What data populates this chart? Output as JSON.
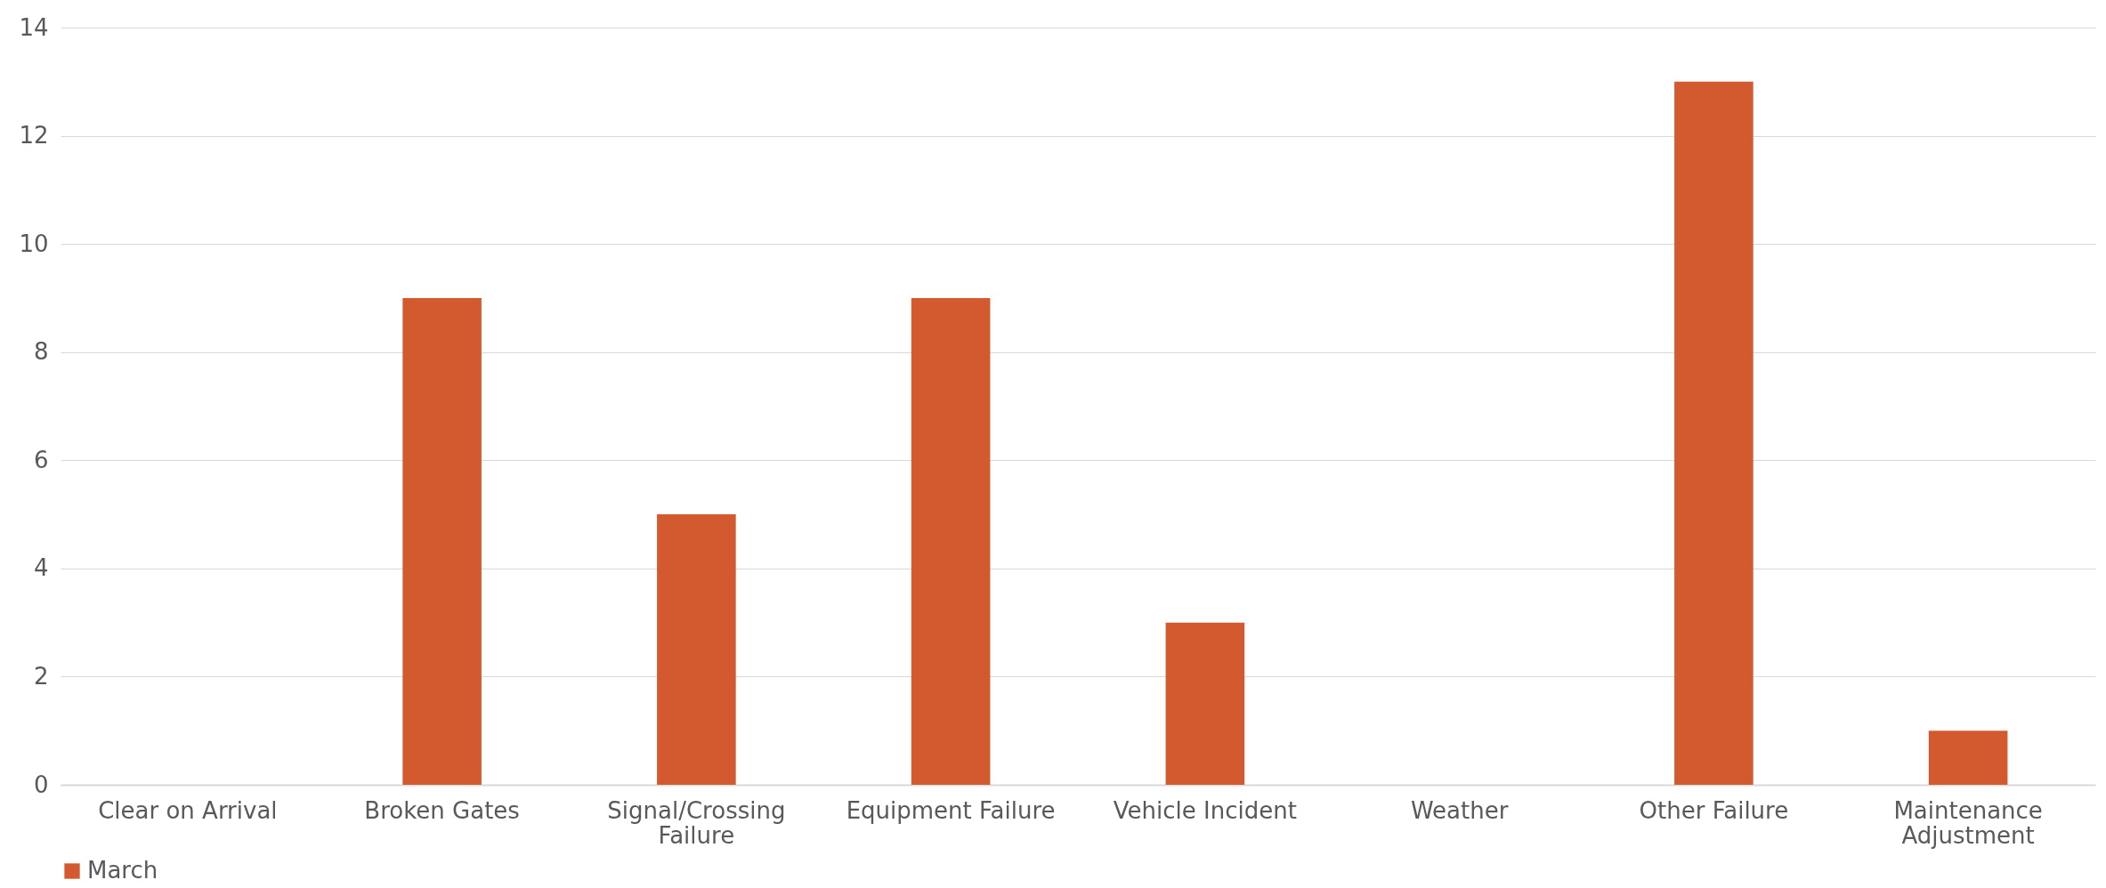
{
  "chart_data": {
    "type": "bar",
    "categories": [
      "Clear on Arrival",
      "Broken Gates",
      "Signal/Crossing Failure",
      "Equipment Failure",
      "Vehicle Incident",
      "Weather",
      "Other Failure",
      "Maintenance Adjustment"
    ],
    "series": [
      {
        "name": "March",
        "color": "#d35a2e",
        "values": [
          0,
          9,
          5,
          9,
          3,
          0,
          13,
          1
        ]
      }
    ],
    "ylim": [
      0,
      14
    ],
    "yticks": [
      0,
      2,
      4,
      6,
      8,
      10,
      12,
      14
    ],
    "grid": "y",
    "legend": "bottom"
  }
}
